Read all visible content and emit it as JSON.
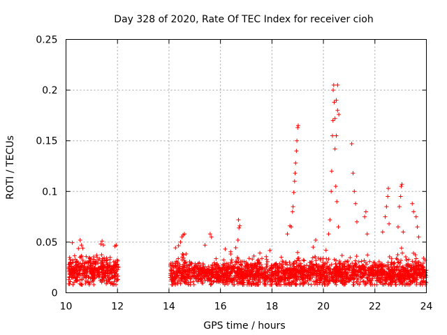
{
  "chart_data": {
    "type": "scatter",
    "title": "Day 328 of 2020, Rate Of TEC Index for receiver cioh",
    "xlabel": "GPS time / hours",
    "ylabel": "ROTI / TECUs",
    "xlim": [
      10,
      24
    ],
    "ylim": [
      0,
      0.25
    ],
    "xticks": [
      "10",
      "12",
      "14",
      "16",
      "18",
      "20",
      "22",
      "24"
    ],
    "yticks": [
      "0",
      "0.05",
      "0.1",
      "0.15",
      "0.2",
      "0.25"
    ],
    "grid": true,
    "marker": "+",
    "color": "#ff0000",
    "background_segments": [
      {
        "start": 10.1,
        "end": 12.05,
        "base": 0.021,
        "spread": 0.018
      },
      {
        "start": 14.05,
        "end": 24.0,
        "base": 0.019,
        "spread": 0.018
      }
    ],
    "series": [
      {
        "name": "cioh",
        "points": [
          [
            10.55,
            0.052
          ],
          [
            10.6,
            0.047
          ],
          [
            10.65,
            0.044
          ],
          [
            11.35,
            0.048
          ],
          [
            11.4,
            0.051
          ],
          [
            11.9,
            0.046
          ],
          [
            11.95,
            0.047
          ],
          [
            14.5,
            0.055
          ],
          [
            14.55,
            0.057
          ],
          [
            14.6,
            0.058
          ],
          [
            14.45,
            0.05
          ],
          [
            15.4,
            0.047
          ],
          [
            15.6,
            0.058
          ],
          [
            15.65,
            0.055
          ],
          [
            16.7,
            0.072
          ],
          [
            16.75,
            0.066
          ],
          [
            16.72,
            0.064
          ],
          [
            16.68,
            0.052
          ],
          [
            18.6,
            0.058
          ],
          [
            18.7,
            0.066
          ],
          [
            18.75,
            0.065
          ],
          [
            18.8,
            0.08
          ],
          [
            18.82,
            0.085
          ],
          [
            18.85,
            0.099
          ],
          [
            18.88,
            0.11
          ],
          [
            18.9,
            0.118
          ],
          [
            18.92,
            0.128
          ],
          [
            18.95,
            0.14
          ],
          [
            18.97,
            0.15
          ],
          [
            19.0,
            0.163
          ],
          [
            19.02,
            0.165
          ],
          [
            19.6,
            0.045
          ],
          [
            19.7,
            0.052
          ],
          [
            20.1,
            0.042
          ],
          [
            20.2,
            0.058
          ],
          [
            20.25,
            0.072
          ],
          [
            20.3,
            0.1
          ],
          [
            20.32,
            0.12
          ],
          [
            20.35,
            0.155
          ],
          [
            20.37,
            0.17
          ],
          [
            20.38,
            0.2
          ],
          [
            20.4,
            0.205
          ],
          [
            20.42,
            0.188
          ],
          [
            20.45,
            0.172
          ],
          [
            20.5,
            0.19
          ],
          [
            20.55,
            0.205
          ],
          [
            20.45,
            0.142
          ],
          [
            20.5,
            0.155
          ],
          [
            20.55,
            0.18
          ],
          [
            20.6,
            0.176
          ],
          [
            20.48,
            0.105
          ],
          [
            20.52,
            0.09
          ],
          [
            20.58,
            0.065
          ],
          [
            21.1,
            0.147
          ],
          [
            21.15,
            0.118
          ],
          [
            21.2,
            0.1
          ],
          [
            21.25,
            0.088
          ],
          [
            21.3,
            0.07
          ],
          [
            21.6,
            0.075
          ],
          [
            21.65,
            0.08
          ],
          [
            21.7,
            0.058
          ],
          [
            22.3,
            0.06
          ],
          [
            22.4,
            0.075
          ],
          [
            22.45,
            0.085
          ],
          [
            22.5,
            0.095
          ],
          [
            22.52,
            0.103
          ],
          [
            22.55,
            0.068
          ],
          [
            22.9,
            0.065
          ],
          [
            22.95,
            0.085
          ],
          [
            23.0,
            0.095
          ],
          [
            23.02,
            0.105
          ],
          [
            23.05,
            0.107
          ],
          [
            23.1,
            0.06
          ],
          [
            23.45,
            0.088
          ],
          [
            23.5,
            0.08
          ],
          [
            23.6,
            0.075
          ],
          [
            23.65,
            0.065
          ],
          [
            23.7,
            0.055
          ]
        ]
      }
    ]
  }
}
